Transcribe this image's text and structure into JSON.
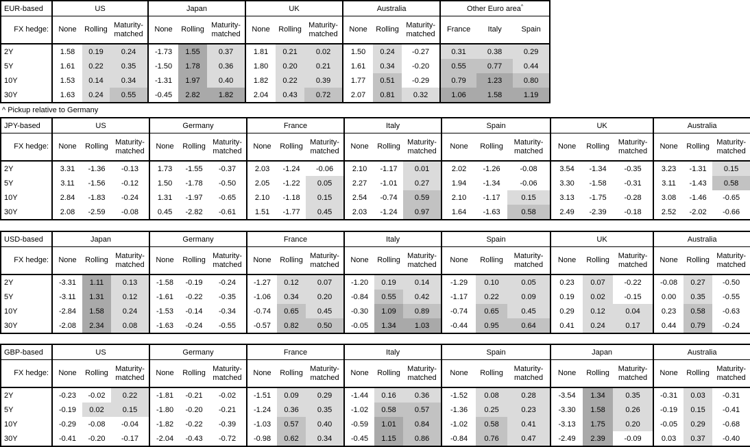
{
  "note": "^ Pickup relative to Germany",
  "shared": {
    "fx_hedge_label": "FX hedge:",
    "row_labels": [
      "2Y",
      "5Y",
      "10Y",
      "30Y"
    ],
    "hedge_columns": [
      "None",
      "Rolling",
      "Maturity-matched"
    ]
  },
  "colors": {
    "shade_light": "#dbdbdb",
    "shade_medium": "#c2c2c2",
    "shade_dark": "#a9a9a9",
    "border": "#000000"
  },
  "chart_data": [
    {
      "type": "table",
      "title": "EUR-based",
      "groups": [
        {
          "name": "US",
          "columns": [
            "None",
            "Rolling",
            "Maturity-matched"
          ],
          "rows": [
            [
              "1.58",
              "0.19",
              "0.24"
            ],
            [
              "1.61",
              "0.22",
              "0.35"
            ],
            [
              "1.53",
              "0.14",
              "0.34"
            ],
            [
              "1.63",
              "0.24",
              "0.55"
            ]
          ]
        },
        {
          "name": "Japan",
          "columns": [
            "None",
            "Rolling",
            "Maturity-matched"
          ],
          "rows": [
            [
              "-1.73",
              "1.55",
              "0.37"
            ],
            [
              "-1.50",
              "1.78",
              "0.36"
            ],
            [
              "-1.31",
              "1.97",
              "0.40"
            ],
            [
              "-0.45",
              "2.82",
              "1.82"
            ]
          ]
        },
        {
          "name": "UK",
          "columns": [
            "None",
            "Rolling",
            "Maturity-matched"
          ],
          "rows": [
            [
              "1.81",
              "0.21",
              "0.02"
            ],
            [
              "1.80",
              "0.20",
              "0.21"
            ],
            [
              "1.82",
              "0.22",
              "0.39"
            ],
            [
              "2.04",
              "0.43",
              "0.72"
            ]
          ]
        },
        {
          "name": "Australia",
          "columns": [
            "None",
            "Rolling",
            "Maturity-matched"
          ],
          "rows": [
            [
              "1.50",
              "0.24",
              "-0.27"
            ],
            [
              "1.61",
              "0.34",
              "-0.20"
            ],
            [
              "1.77",
              "0.51",
              "-0.29"
            ],
            [
              "2.07",
              "0.81",
              "0.32"
            ]
          ]
        },
        {
          "name": "Other Euro area",
          "sup": "^",
          "shade_all": true,
          "columns": [
            "France",
            "Italy",
            "Spain"
          ],
          "rows": [
            [
              "0.31",
              "0.38",
              "0.29"
            ],
            [
              "0.55",
              "0.77",
              "0.44"
            ],
            [
              "0.79",
              "1.23",
              "0.80"
            ],
            [
              "1.06",
              "1.58",
              "1.19"
            ]
          ]
        }
      ]
    },
    {
      "type": "table",
      "title": "JPY-based",
      "groups": [
        {
          "name": "US",
          "columns": [
            "None",
            "Rolling",
            "Maturity-matched"
          ],
          "rows": [
            [
              "3.31",
              "-1.36",
              "-0.13"
            ],
            [
              "3.11",
              "-1.56",
              "-0.12"
            ],
            [
              "2.84",
              "-1.83",
              "-0.24"
            ],
            [
              "2.08",
              "-2.59",
              "-0.08"
            ]
          ]
        },
        {
          "name": "Germany",
          "columns": [
            "None",
            "Rolling",
            "Maturity-matched"
          ],
          "rows": [
            [
              "1.73",
              "-1.55",
              "-0.37"
            ],
            [
              "1.50",
              "-1.78",
              "-0.50"
            ],
            [
              "1.31",
              "-1.97",
              "-0.65"
            ],
            [
              "0.45",
              "-2.82",
              "-0.61"
            ]
          ]
        },
        {
          "name": "France",
          "columns": [
            "None",
            "Rolling",
            "Maturity-matched"
          ],
          "rows": [
            [
              "2.03",
              "-1.24",
              "-0.06"
            ],
            [
              "2.05",
              "-1.22",
              "0.05"
            ],
            [
              "2.10",
              "-1.18",
              "0.15"
            ],
            [
              "1.51",
              "-1.77",
              "0.45"
            ]
          ]
        },
        {
          "name": "Italy",
          "columns": [
            "None",
            "Rolling",
            "Maturity-matched"
          ],
          "rows": [
            [
              "2.10",
              "-1.17",
              "0.01"
            ],
            [
              "2.27",
              "-1.01",
              "0.27"
            ],
            [
              "2.54",
              "-0.74",
              "0.59"
            ],
            [
              "2.03",
              "-1.24",
              "0.97"
            ]
          ]
        },
        {
          "name": "Spain",
          "columns": [
            "None",
            "Rolling",
            "Maturity-matched"
          ],
          "rows": [
            [
              "2.02",
              "-1.26",
              "-0.08"
            ],
            [
              "1.94",
              "-1.34",
              "-0.06"
            ],
            [
              "2.10",
              "-1.17",
              "0.15"
            ],
            [
              "1.64",
              "-1.63",
              "0.58"
            ]
          ]
        },
        {
          "name": "UK",
          "columns": [
            "None",
            "Rolling",
            "Maturity-matched"
          ],
          "rows": [
            [
              "3.54",
              "-1.34",
              "-0.35"
            ],
            [
              "3.30",
              "-1.58",
              "-0.31"
            ],
            [
              "3.13",
              "-1.75",
              "-0.28"
            ],
            [
              "2.49",
              "-2.39",
              "-0.18"
            ]
          ]
        },
        {
          "name": "Australia",
          "columns": [
            "None",
            "Rolling",
            "Maturity-matched"
          ],
          "rows": [
            [
              "3.23",
              "-1.31",
              "0.15"
            ],
            [
              "3.11",
              "-1.43",
              "0.58"
            ],
            [
              "3.08",
              "-1.46",
              "-0.65"
            ],
            [
              "2.52",
              "-2.02",
              "-0.66"
            ]
          ]
        }
      ]
    },
    {
      "type": "table",
      "title": "USD-based",
      "groups": [
        {
          "name": "Japan",
          "columns": [
            "None",
            "Rolling",
            "Maturity-matched"
          ],
          "rows": [
            [
              "-3.31",
              "1.11",
              "0.13"
            ],
            [
              "-3.11",
              "1.31",
              "0.12"
            ],
            [
              "-2.84",
              "1.58",
              "0.24"
            ],
            [
              "-2.08",
              "2.34",
              "0.08"
            ]
          ]
        },
        {
          "name": "Germany",
          "columns": [
            "None",
            "Rolling",
            "Maturity-matched"
          ],
          "rows": [
            [
              "-1.58",
              "-0.19",
              "-0.24"
            ],
            [
              "-1.61",
              "-0.22",
              "-0.35"
            ],
            [
              "-1.53",
              "-0.14",
              "-0.34"
            ],
            [
              "-1.63",
              "-0.24",
              "-0.55"
            ]
          ]
        },
        {
          "name": "France",
          "columns": [
            "None",
            "Rolling",
            "Maturity-matched"
          ],
          "rows": [
            [
              "-1.27",
              "0.12",
              "0.07"
            ],
            [
              "-1.06",
              "0.34",
              "0.20"
            ],
            [
              "-0.74",
              "0.65",
              "0.45"
            ],
            [
              "-0.57",
              "0.82",
              "0.50"
            ]
          ]
        },
        {
          "name": "Italy",
          "columns": [
            "None",
            "Rolling",
            "Maturity-matched"
          ],
          "rows": [
            [
              "-1.20",
              "0.19",
              "0.14"
            ],
            [
              "-0.84",
              "0.55",
              "0.42"
            ],
            [
              "-0.30",
              "1.09",
              "0.89"
            ],
            [
              "-0.05",
              "1.34",
              "1.03"
            ]
          ]
        },
        {
          "name": "Spain",
          "columns": [
            "None",
            "Rolling",
            "Maturity-matched"
          ],
          "rows": [
            [
              "-1.29",
              "0.10",
              "0.05"
            ],
            [
              "-1.17",
              "0.22",
              "0.09"
            ],
            [
              "-0.74",
              "0.65",
              "0.45"
            ],
            [
              "-0.44",
              "0.95",
              "0.64"
            ]
          ]
        },
        {
          "name": "UK",
          "columns": [
            "None",
            "Rolling",
            "Maturity-matched"
          ],
          "rows": [
            [
              "0.23",
              "0.07",
              "-0.22"
            ],
            [
              "0.19",
              "0.02",
              "-0.15"
            ],
            [
              "0.29",
              "0.12",
              "0.04"
            ],
            [
              "0.41",
              "0.24",
              "0.17"
            ]
          ]
        },
        {
          "name": "Australia",
          "columns": [
            "None",
            "Rolling",
            "Maturity-matched"
          ],
          "rows": [
            [
              "-0.08",
              "0.27",
              "-0.50"
            ],
            [
              "0.00",
              "0.35",
              "-0.55"
            ],
            [
              "0.23",
              "0.58",
              "-0.63"
            ],
            [
              "0.44",
              "0.79",
              "-0.24"
            ]
          ]
        }
      ]
    },
    {
      "type": "table",
      "title": "GBP-based",
      "groups": [
        {
          "name": "US",
          "columns": [
            "None",
            "Rolling",
            "Maturity-matched"
          ],
          "rows": [
            [
              "-0.23",
              "-0.02",
              "0.22"
            ],
            [
              "-0.19",
              "0.02",
              "0.15"
            ],
            [
              "-0.29",
              "-0.08",
              "-0.04"
            ],
            [
              "-0.41",
              "-0.20",
              "-0.17"
            ]
          ]
        },
        {
          "name": "Germany",
          "columns": [
            "None",
            "Rolling",
            "Maturity-matched"
          ],
          "rows": [
            [
              "-1.81",
              "-0.21",
              "-0.02"
            ],
            [
              "-1.80",
              "-0.20",
              "-0.21"
            ],
            [
              "-1.82",
              "-0.22",
              "-0.39"
            ],
            [
              "-2.04",
              "-0.43",
              "-0.72"
            ]
          ]
        },
        {
          "name": "France",
          "columns": [
            "None",
            "Rolling",
            "Maturity-matched"
          ],
          "rows": [
            [
              "-1.51",
              "0.09",
              "0.29"
            ],
            [
              "-1.24",
              "0.36",
              "0.35"
            ],
            [
              "-1.03",
              "0.57",
              "0.40"
            ],
            [
              "-0.98",
              "0.62",
              "0.34"
            ]
          ]
        },
        {
          "name": "Italy",
          "columns": [
            "None",
            "Rolling",
            "Maturity-matched"
          ],
          "rows": [
            [
              "-1.44",
              "0.16",
              "0.36"
            ],
            [
              "-1.02",
              "0.58",
              "0.57"
            ],
            [
              "-0.59",
              "1.01",
              "0.84"
            ],
            [
              "-0.45",
              "1.15",
              "0.86"
            ]
          ]
        },
        {
          "name": "Spain",
          "columns": [
            "None",
            "Rolling",
            "Maturity-matched"
          ],
          "rows": [
            [
              "-1.52",
              "0.08",
              "0.28"
            ],
            [
              "-1.36",
              "0.25",
              "0.23"
            ],
            [
              "-1.02",
              "0.58",
              "0.41"
            ],
            [
              "-0.84",
              "0.76",
              "0.47"
            ]
          ]
        },
        {
          "name": "Japan",
          "columns": [
            "None",
            "Rolling",
            "Maturity-matched"
          ],
          "rows": [
            [
              "-3.54",
              "1.34",
              "0.35"
            ],
            [
              "-3.30",
              "1.58",
              "0.26"
            ],
            [
              "-3.13",
              "1.75",
              "0.20"
            ],
            [
              "-2.49",
              "2.39",
              "-0.09"
            ]
          ]
        },
        {
          "name": "Australia",
          "columns": [
            "None",
            "Rolling",
            "Maturity-matched"
          ],
          "rows": [
            [
              "-0.31",
              "0.03",
              "-0.31"
            ],
            [
              "-0.19",
              "0.15",
              "-0.41"
            ],
            [
              "-0.05",
              "0.29",
              "-0.68"
            ],
            [
              "0.03",
              "0.37",
              "-0.40"
            ]
          ]
        }
      ]
    }
  ]
}
